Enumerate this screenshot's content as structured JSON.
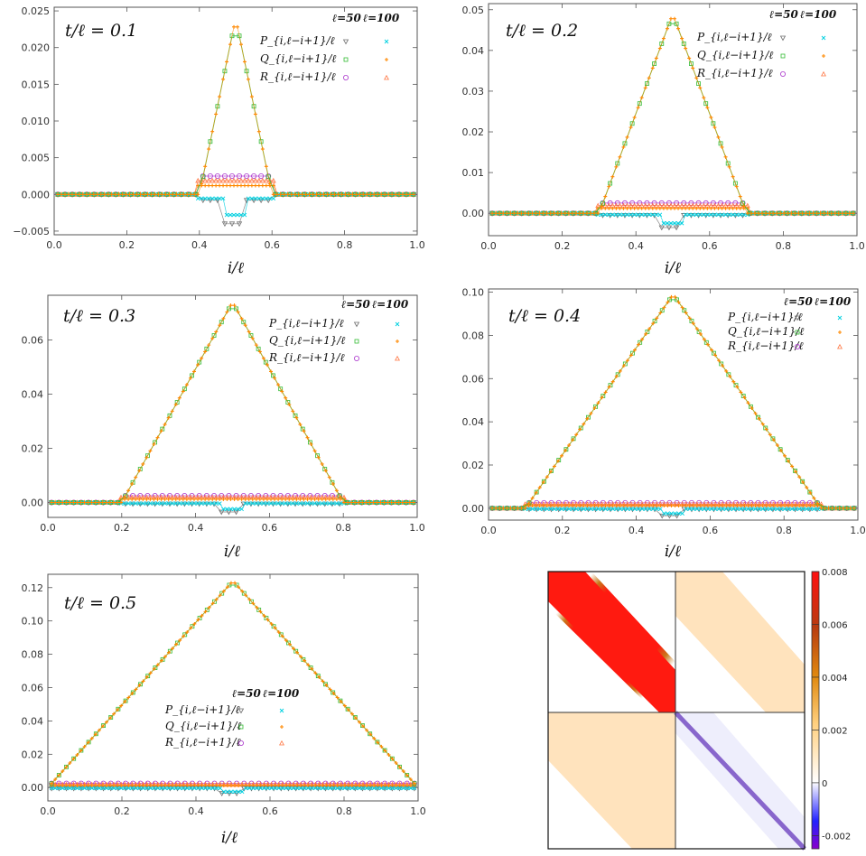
{
  "legend": {
    "col_l50": "ℓ=50",
    "col_l100": "ℓ=100",
    "row_P": "P_{i,ℓ−i+1}/ℓ",
    "row_Q": "Q_{i,ℓ−i+1}/ℓ",
    "row_R": "R_{i,ℓ−i+1}/ℓ"
  },
  "colors": {
    "P50": "#707070",
    "P100": "#00d0e0",
    "Q50": "#33bb33",
    "Q100": "#ff8800",
    "R50": "#aa33cc",
    "R100": "#ff7744",
    "line_main": "#88dd22"
  },
  "chart_data": [
    {
      "type": "line",
      "title": "t/ℓ = 0.1",
      "t": 0.1,
      "xlabel": "i/ℓ",
      "xlim": [
        0,
        1
      ],
      "ylim": [
        -0.0055,
        0.0255
      ],
      "xticks": [
        0.0,
        0.2,
        0.4,
        0.6,
        0.8,
        1.0
      ],
      "xtick_labels": [
        "0.0",
        "0.2",
        "0.4",
        "0.6",
        "0.8",
        "1.0"
      ],
      "yticks": [
        -0.005,
        0,
        0.005,
        0.01,
        0.015,
        0.02,
        0.025
      ],
      "ytick_labels": [
        "−0.005",
        "0.000",
        "0.005",
        "0.010",
        "0.015",
        "0.020",
        "0.025"
      ],
      "peak": 0.024,
      "R_level": 0.0025,
      "Q_level": 0.0012,
      "P_level": -0.0008,
      "P_dip": -0.004,
      "legend_pos": "top-right"
    },
    {
      "type": "line",
      "title": "t/ℓ = 0.2",
      "t": 0.2,
      "xlabel": "i/ℓ",
      "xlim": [
        0,
        1
      ],
      "ylim": [
        -0.0055,
        0.0515
      ],
      "xticks": [
        0.0,
        0.2,
        0.4,
        0.6,
        0.8,
        1.0
      ],
      "xtick_labels": [
        "0.0",
        "0.2",
        "0.4",
        "0.6",
        "0.8",
        "1.0"
      ],
      "yticks": [
        0,
        0.01,
        0.02,
        0.03,
        0.04,
        0.05
      ],
      "ytick_labels": [
        "0.00",
        "0.01",
        "0.02",
        "0.03",
        "0.04",
        "0.05"
      ],
      "peak": 0.049,
      "R_level": 0.0025,
      "Q_level": 0.0012,
      "P_level": -0.0005,
      "P_dip": -0.0035,
      "legend_pos": "top-right"
    },
    {
      "type": "line",
      "title": "t/ℓ = 0.3",
      "t": 0.3,
      "xlabel": "i/ℓ",
      "xlim": [
        0,
        1
      ],
      "ylim": [
        -0.0055,
        0.0765
      ],
      "xticks": [
        0.0,
        0.2,
        0.4,
        0.6,
        0.8,
        1.0
      ],
      "xtick_labels": [
        "0.0",
        "0.2",
        "0.4",
        "0.6",
        "0.8",
        "1.0"
      ],
      "yticks": [
        0,
        0.02,
        0.04,
        0.06
      ],
      "ytick_labels": [
        "0.00",
        "0.02",
        "0.04",
        "0.06"
      ],
      "peak": 0.074,
      "R_level": 0.0025,
      "Q_level": 0.0012,
      "P_level": -0.0005,
      "P_dip": -0.0035,
      "legend_pos": "top-right"
    },
    {
      "type": "line",
      "title": "t/ℓ = 0.4",
      "t": 0.4,
      "xlabel": "i/ℓ",
      "xlim": [
        0,
        1
      ],
      "ylim": [
        -0.0055,
        0.1015
      ],
      "xticks": [
        0.0,
        0.2,
        0.4,
        0.6,
        0.8,
        1.0
      ],
      "xtick_labels": [
        "0.0",
        "0.2",
        "0.4",
        "0.6",
        "0.8",
        "1.0"
      ],
      "yticks": [
        0,
        0.02,
        0.04,
        0.06,
        0.08,
        0.1
      ],
      "ytick_labels": [
        "0.00",
        "0.02",
        "0.04",
        "0.06",
        "0.08",
        "0.10"
      ],
      "peak": 0.099,
      "R_level": 0.0025,
      "Q_level": 0.0012,
      "P_level": -0.0005,
      "P_dip": -0.0035,
      "legend_pos": "top-right"
    },
    {
      "type": "line",
      "title": "t/ℓ = 0.5",
      "t": 0.5,
      "xlabel": "i/ℓ",
      "xlim": [
        0,
        1
      ],
      "ylim": [
        -0.008,
        0.128
      ],
      "xticks": [
        0.0,
        0.2,
        0.4,
        0.6,
        0.8,
        1.0
      ],
      "xtick_labels": [
        "0.0",
        "0.2",
        "0.4",
        "0.6",
        "0.8",
        "1.0"
      ],
      "yticks": [
        0,
        0.02,
        0.04,
        0.06,
        0.08,
        0.1,
        0.12
      ],
      "ytick_labels": [
        "0.00",
        "0.02",
        "0.04",
        "0.06",
        "0.08",
        "0.10",
        "0.12"
      ],
      "peak": 0.124,
      "R_level": 0.0025,
      "Q_level": 0.0012,
      "P_level": -0.0005,
      "P_dip": -0.0035,
      "legend_pos": "center"
    },
    {
      "type": "heatmap",
      "blocks": [
        {
          "name": "top-left",
          "value": 0.008
        },
        {
          "name": "top-right",
          "value": 0.0012
        },
        {
          "name": "bottom-left",
          "value": 0.0012
        },
        {
          "name": "bottom-right",
          "value": -0.0025
        }
      ],
      "colorbar": {
        "min": -0.0025,
        "max": 0.008,
        "ticks": [
          0.008,
          0.006,
          0.004,
          0.002,
          0,
          -0.002
        ],
        "tick_labels": [
          "0.008",
          "0.006",
          "0.004",
          "0.002",
          "0",
          "-0.002"
        ]
      }
    }
  ]
}
